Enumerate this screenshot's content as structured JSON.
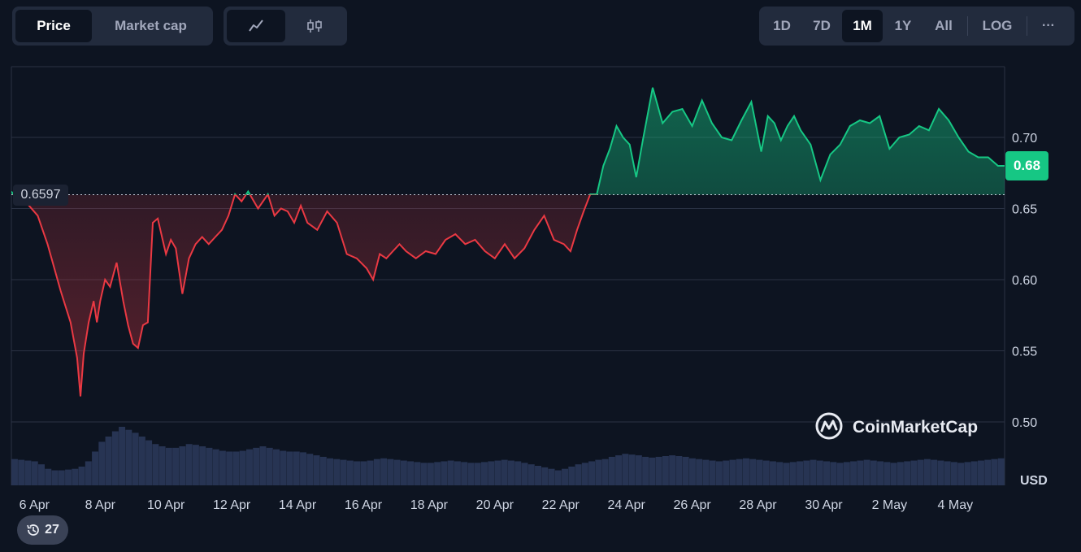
{
  "toolbar": {
    "price_label": "Price",
    "marketcap_label": "Market cap",
    "line_icon": "line-chart-icon",
    "candle_icon": "candlestick-icon",
    "ranges": [
      "1D",
      "7D",
      "1M",
      "1Y",
      "All"
    ],
    "active_range": "1M",
    "log_label": "LOG",
    "more_label": "···"
  },
  "watermark": "CoinMarketCap",
  "history_badge": "27",
  "colors": {
    "bg": "#0d1421",
    "up": "#16c784",
    "down": "#ea3943",
    "grid": "#2a3244",
    "volume": "#2d3a5c"
  },
  "chart_data": {
    "type": "line",
    "currency_label": "USD",
    "baseline_value": 0.6597,
    "baseline_label": "0.6597",
    "last_value": 0.68,
    "last_label": "0.68",
    "ylim": [
      0.475,
      0.75
    ],
    "y_ticks": [
      0.5,
      0.55,
      0.6,
      0.65,
      0.7
    ],
    "y_tick_labels": [
      "0.50",
      "0.55",
      "0.60",
      "0.65",
      "0.70"
    ],
    "x_ticks": [
      "6 Apr",
      "8 Apr",
      "10 Apr",
      "12 Apr",
      "14 Apr",
      "16 Apr",
      "18 Apr",
      "20 Apr",
      "22 Apr",
      "24 Apr",
      "26 Apr",
      "28 Apr",
      "30 Apr",
      "2 May",
      "4 May"
    ],
    "x_tick_positions": [
      0.7,
      2.7,
      4.7,
      6.7,
      8.7,
      10.7,
      12.7,
      14.7,
      16.7,
      18.7,
      20.7,
      22.7,
      24.7,
      26.7,
      28.7
    ],
    "x_range": [
      0,
      30.2
    ],
    "series": [
      {
        "x": [
          0,
          0.2,
          0.5,
          0.8,
          1.1,
          1.5,
          1.8,
          2.0,
          2.1,
          2.2,
          2.35,
          2.5,
          2.6,
          2.7,
          2.85,
          3.0,
          3.2,
          3.4,
          3.55,
          3.7,
          3.85,
          4.0,
          4.15,
          4.3,
          4.45,
          4.6,
          4.7,
          4.85,
          5.0,
          5.2,
          5.4,
          5.6,
          5.8,
          6.0,
          6.2,
          6.4,
          6.6,
          6.8,
          7.0,
          7.2,
          7.5,
          7.8,
          8.0,
          8.2,
          8.4,
          8.6,
          8.8,
          9.0,
          9.3,
          9.6,
          9.9,
          10.2,
          10.5,
          10.8,
          11.0,
          11.2,
          11.4,
          11.6,
          11.8,
          12.0,
          12.3,
          12.6,
          12.9,
          13.2,
          13.5,
          13.8,
          14.1,
          14.4,
          14.7,
          15.0,
          15.3,
          15.6,
          15.9,
          16.2,
          16.5,
          16.8,
          17.0,
          17.2,
          17.4,
          17.6,
          17.8,
          18.0,
          18.2,
          18.4,
          18.6,
          18.8,
          19.0,
          19.2,
          19.5,
          19.8,
          20.1,
          20.4,
          20.7,
          21.0,
          21.3,
          21.6,
          21.9,
          22.2,
          22.5,
          22.8,
          23.0,
          23.2,
          23.4,
          23.6,
          23.8,
          24.0,
          24.3,
          24.6,
          24.9,
          25.2,
          25.5,
          25.8,
          26.1,
          26.4,
          26.7,
          27.0,
          27.3,
          27.6,
          27.9,
          28.2,
          28.5,
          28.8,
          29.1,
          29.4,
          29.7,
          30.0,
          30.2
        ],
        "y": [
          0.662,
          0.655,
          0.653,
          0.645,
          0.625,
          0.592,
          0.57,
          0.545,
          0.518,
          0.548,
          0.57,
          0.585,
          0.57,
          0.585,
          0.6,
          0.595,
          0.612,
          0.585,
          0.568,
          0.555,
          0.552,
          0.568,
          0.57,
          0.64,
          0.643,
          0.628,
          0.618,
          0.628,
          0.622,
          0.59,
          0.615,
          0.625,
          0.63,
          0.625,
          0.63,
          0.635,
          0.645,
          0.66,
          0.655,
          0.662,
          0.65,
          0.66,
          0.645,
          0.65,
          0.648,
          0.64,
          0.652,
          0.64,
          0.635,
          0.648,
          0.64,
          0.618,
          0.615,
          0.608,
          0.6,
          0.618,
          0.615,
          0.62,
          0.625,
          0.62,
          0.615,
          0.62,
          0.618,
          0.628,
          0.632,
          0.625,
          0.628,
          0.62,
          0.615,
          0.625,
          0.615,
          0.622,
          0.635,
          0.645,
          0.628,
          0.625,
          0.62,
          0.635,
          0.648,
          0.66,
          0.66,
          0.68,
          0.692,
          0.708,
          0.7,
          0.695,
          0.672,
          0.698,
          0.735,
          0.71,
          0.718,
          0.72,
          0.708,
          0.726,
          0.71,
          0.7,
          0.698,
          0.712,
          0.725,
          0.69,
          0.715,
          0.71,
          0.698,
          0.708,
          0.715,
          0.705,
          0.695,
          0.67,
          0.688,
          0.695,
          0.708,
          0.712,
          0.71,
          0.715,
          0.692,
          0.7,
          0.702,
          0.708,
          0.705,
          0.72,
          0.712,
          0.7,
          0.69,
          0.686,
          0.686,
          0.68,
          0.68
        ]
      }
    ],
    "volume": [
      35,
      34,
      33,
      32,
      28,
      22,
      20,
      20,
      21,
      22,
      25,
      32,
      45,
      58,
      65,
      72,
      78,
      74,
      70,
      65,
      60,
      55,
      52,
      50,
      50,
      52,
      55,
      54,
      52,
      50,
      48,
      46,
      45,
      45,
      46,
      48,
      50,
      52,
      50,
      48,
      46,
      45,
      45,
      44,
      42,
      40,
      38,
      36,
      35,
      34,
      33,
      32,
      32,
      33,
      35,
      36,
      35,
      34,
      33,
      32,
      31,
      30,
      30,
      31,
      32,
      33,
      32,
      31,
      30,
      30,
      31,
      32,
      33,
      34,
      33,
      32,
      30,
      28,
      26,
      24,
      22,
      20,
      22,
      25,
      28,
      30,
      32,
      34,
      35,
      38,
      40,
      42,
      41,
      40,
      38,
      37,
      38,
      39,
      40,
      39,
      38,
      36,
      35,
      34,
      33,
      32,
      33,
      34,
      35,
      36,
      35,
      34,
      33,
      32,
      31,
      30,
      31,
      32,
      33,
      34,
      33,
      32,
      31,
      30,
      31,
      32,
      33,
      34,
      33,
      32,
      31,
      30,
      31,
      32,
      33,
      34,
      35,
      34,
      33,
      32,
      31,
      30,
      31,
      32,
      33,
      34,
      35,
      36
    ]
  }
}
